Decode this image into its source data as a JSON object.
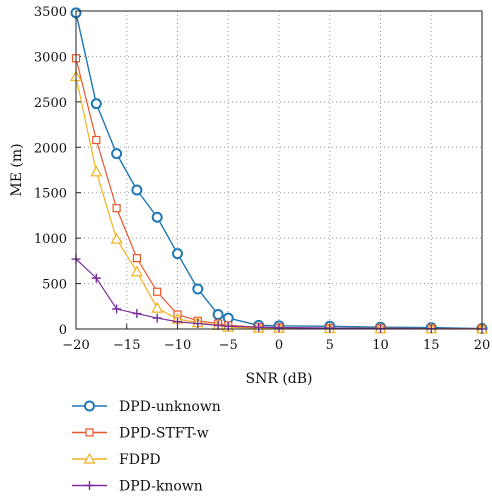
{
  "chart_data": {
    "type": "line",
    "xlabel": "SNR (dB)",
    "ylabel": "ME (m)",
    "xlim": [
      -20,
      20
    ],
    "ylim": [
      0,
      3500
    ],
    "xticks": [
      -20,
      -15,
      -10,
      -5,
      0,
      5,
      10,
      15,
      20
    ],
    "xtick_labels": [
      "−20",
      "−15",
      "−10",
      "−5",
      "0",
      "5",
      "10",
      "15",
      "20"
    ],
    "yticks": [
      0,
      500,
      1000,
      1500,
      2000,
      2500,
      3000,
      3500
    ],
    "ytick_labels": [
      "0",
      "500",
      "1000",
      "1500",
      "2000",
      "2500",
      "3000",
      "3500"
    ],
    "grid": "dotted",
    "legend_position": "below-left",
    "series": [
      {
        "name": "DPD-unknown",
        "color": "#1f77b4",
        "marker": "circle",
        "x": [
          -20,
          -18,
          -16,
          -14,
          -12,
          -10,
          -8,
          -6,
          -5,
          -2,
          0,
          5,
          10,
          15,
          20
        ],
        "y": [
          3480,
          2480,
          1930,
          1530,
          1230,
          830,
          440,
          160,
          120,
          40,
          35,
          30,
          20,
          15,
          5
        ]
      },
      {
        "name": "DPD-STFT-w",
        "color": "#e8552b",
        "marker": "square",
        "x": [
          -20,
          -18,
          -16,
          -14,
          -12,
          -10,
          -8,
          -6,
          -5,
          -2,
          0,
          5,
          10,
          15,
          20
        ],
        "y": [
          2980,
          2080,
          1330,
          780,
          410,
          160,
          90,
          60,
          40,
          20,
          15,
          10,
          8,
          5,
          3
        ]
      },
      {
        "name": "FDPD",
        "color": "#f2b21c",
        "marker": "triangle",
        "x": [
          -20,
          -18,
          -16,
          -14,
          -12,
          -10,
          -8,
          -6,
          -5,
          -2,
          0,
          5,
          10,
          15,
          20
        ],
        "y": [
          2780,
          1730,
          990,
          630,
          230,
          110,
          70,
          40,
          20,
          10,
          8,
          5,
          3,
          2,
          1
        ]
      },
      {
        "name": "DPD-known",
        "color": "#7b2d9b",
        "marker": "plus",
        "x": [
          -20,
          -18,
          -16,
          -14,
          -12,
          -10,
          -8,
          -6,
          -5,
          -2,
          0,
          5,
          10,
          15,
          20
        ],
        "y": [
          770,
          560,
          220,
          170,
          120,
          80,
          60,
          40,
          30,
          20,
          15,
          10,
          5,
          3,
          1
        ]
      }
    ]
  }
}
